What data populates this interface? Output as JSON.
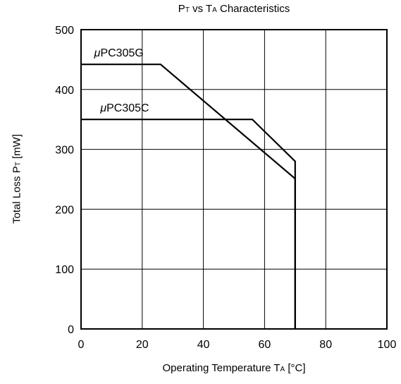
{
  "chart_data": {
    "type": "line",
    "title": {
      "p1": "P",
      "sub1": "T",
      "p2": " vs T",
      "sub2": "A",
      "p3": " Characteristics"
    },
    "xlabel": {
      "p1": "Operating Temperature T",
      "sub": "A",
      "p2": " [°C]"
    },
    "ylabel": {
      "p1": "Total Loss P",
      "sub": "T",
      "p2": " [mW]"
    },
    "xlim": [
      0,
      100
    ],
    "ylim": [
      0,
      500
    ],
    "xticks": [
      0,
      20,
      40,
      60,
      80,
      100
    ],
    "yticks": [
      0,
      100,
      200,
      300,
      400,
      500
    ],
    "grid": true,
    "series": [
      {
        "name": "μPC305G",
        "prefix": "μ",
        "rest": "PC305G",
        "x": [
          0,
          26,
          70,
          70
        ],
        "y": [
          442,
          442,
          251,
          0
        ],
        "label_at": [
          2,
          455
        ]
      },
      {
        "name": "μPC305C",
        "prefix": "μ",
        "rest": "PC305C",
        "x": [
          0,
          56,
          70,
          70
        ],
        "y": [
          350,
          350,
          280,
          0
        ],
        "label_at": [
          4,
          363
        ]
      }
    ]
  }
}
